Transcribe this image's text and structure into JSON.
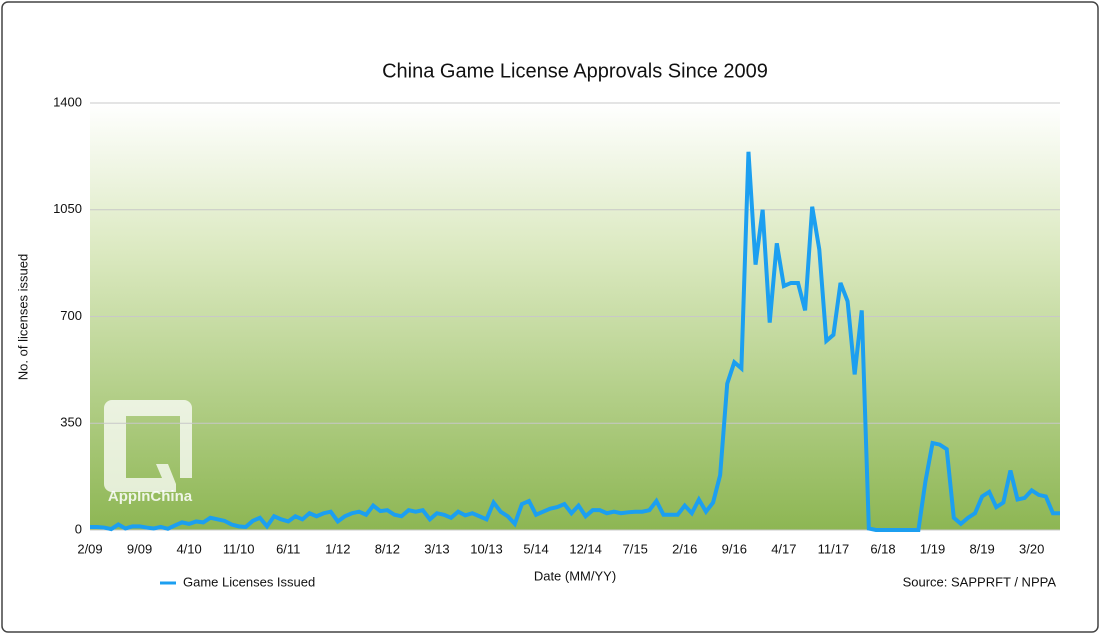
{
  "chart_data": {
    "type": "line",
    "title": "China Game License Approvals Since 2009",
    "ylabel": "No. of licenses issued",
    "xlabel": "Date (MM/YY)",
    "source": "Source: SAPPRFT / NPPA",
    "watermark": "AppInChina",
    "ylim": [
      0,
      1400
    ],
    "yticks": [
      0,
      350,
      700,
      1050,
      1400
    ],
    "grid": true,
    "categories": [
      "2/09",
      null,
      null,
      null,
      null,
      null,
      null,
      "9/09",
      null,
      null,
      null,
      null,
      null,
      null,
      "4/10",
      null,
      null,
      null,
      null,
      null,
      null,
      "11/10",
      null,
      null,
      null,
      null,
      null,
      null,
      "6/11",
      null,
      null,
      null,
      null,
      null,
      null,
      "1/12",
      null,
      null,
      null,
      null,
      null,
      null,
      "8/12",
      null,
      null,
      null,
      null,
      null,
      null,
      "3/13",
      null,
      null,
      null,
      null,
      null,
      null,
      "10/13",
      null,
      null,
      null,
      null,
      null,
      null,
      "5/14",
      null,
      null,
      null,
      null,
      null,
      null,
      "12/14",
      null,
      null,
      null,
      null,
      null,
      null,
      "7/15",
      null,
      null,
      null,
      null,
      null,
      null,
      "2/16",
      null,
      null,
      null,
      null,
      null,
      null,
      "9/16",
      null,
      null,
      null,
      null,
      null,
      null,
      "4/17",
      null,
      null,
      null,
      null,
      null,
      null,
      "11/17",
      null,
      null,
      null,
      null,
      null,
      null,
      "6/18",
      null,
      null,
      null,
      null,
      null,
      null,
      "1/19",
      null,
      null,
      null,
      null,
      null,
      null,
      "8/19",
      null,
      null,
      null,
      null,
      null,
      null,
      "3/20",
      null,
      null,
      null,
      null
    ],
    "series": [
      {
        "name": "Game Licenses Issued",
        "color": "#1c9ff0",
        "values": [
          10,
          10,
          8,
          3,
          18,
          5,
          12,
          12,
          8,
          5,
          10,
          4,
          15,
          25,
          20,
          28,
          25,
          40,
          35,
          30,
          18,
          12,
          10,
          30,
          40,
          12,
          45,
          35,
          28,
          45,
          35,
          55,
          45,
          55,
          60,
          28,
          45,
          55,
          60,
          50,
          80,
          62,
          65,
          50,
          45,
          65,
          60,
          65,
          35,
          55,
          50,
          40,
          60,
          48,
          55,
          45,
          35,
          90,
          60,
          45,
          20,
          85,
          95,
          50,
          60,
          70,
          75,
          85,
          55,
          80,
          45,
          65,
          65,
          55,
          60,
          55,
          58,
          60,
          60,
          65,
          95,
          50,
          50,
          50,
          80,
          55,
          100,
          60,
          90,
          180,
          480,
          550,
          530,
          1240,
          870,
          1050,
          680,
          940,
          800,
          810,
          810,
          720,
          1060,
          920,
          620,
          640,
          810,
          750,
          510,
          720,
          5,
          0,
          0,
          0,
          0,
          0,
          0,
          0,
          160,
          285,
          280,
          265,
          40,
          20,
          40,
          55,
          110,
          125,
          75,
          90,
          195,
          100,
          105,
          130,
          115,
          110,
          55,
          55
        ]
      }
    ]
  }
}
